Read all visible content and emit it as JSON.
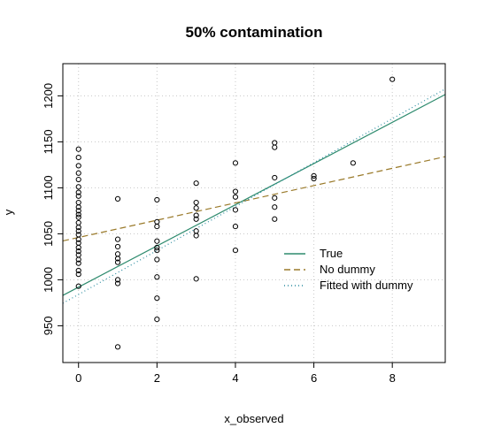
{
  "chart_data": {
    "type": "scatter",
    "title": "50% contamination",
    "xlabel": "x_observed",
    "ylabel": "y",
    "xlim": [
      -0.4,
      9.35
    ],
    "ylim": [
      910,
      1235
    ],
    "xticks": [
      0,
      2,
      4,
      6,
      8
    ],
    "yticks": [
      950,
      1000,
      1050,
      1100,
      1150,
      1200
    ],
    "grid": true,
    "legend_position": "right-center",
    "points": [
      {
        "x": 0,
        "y": 1142
      },
      {
        "x": 0,
        "y": 1133
      },
      {
        "x": 0,
        "y": 1124
      },
      {
        "x": 0,
        "y": 1116
      },
      {
        "x": 0,
        "y": 1109
      },
      {
        "x": 0,
        "y": 1101
      },
      {
        "x": 0,
        "y": 1095
      },
      {
        "x": 0,
        "y": 1091
      },
      {
        "x": 0,
        "y": 1084
      },
      {
        "x": 0,
        "y": 1079
      },
      {
        "x": 0,
        "y": 1075
      },
      {
        "x": 0,
        "y": 1071
      },
      {
        "x": 0,
        "y": 1068
      },
      {
        "x": 0,
        "y": 1062
      },
      {
        "x": 0,
        "y": 1057
      },
      {
        "x": 0,
        "y": 1053
      },
      {
        "x": 0,
        "y": 1049
      },
      {
        "x": 0,
        "y": 1044
      },
      {
        "x": 0,
        "y": 1040
      },
      {
        "x": 0,
        "y": 1035
      },
      {
        "x": 0,
        "y": 1031
      },
      {
        "x": 0,
        "y": 1027
      },
      {
        "x": 0,
        "y": 1022
      },
      {
        "x": 0,
        "y": 1018
      },
      {
        "x": 0,
        "y": 1010
      },
      {
        "x": 0,
        "y": 1006
      },
      {
        "x": 0,
        "y": 993
      },
      {
        "x": 1,
        "y": 1088
      },
      {
        "x": 1,
        "y": 1044
      },
      {
        "x": 1,
        "y": 1036
      },
      {
        "x": 1,
        "y": 1028
      },
      {
        "x": 1,
        "y": 1023
      },
      {
        "x": 1,
        "y": 1019
      },
      {
        "x": 1,
        "y": 1000
      },
      {
        "x": 1,
        "y": 996
      },
      {
        "x": 1,
        "y": 927
      },
      {
        "x": 2,
        "y": 1087
      },
      {
        "x": 2,
        "y": 1063
      },
      {
        "x": 2,
        "y": 1058
      },
      {
        "x": 2,
        "y": 1042
      },
      {
        "x": 2,
        "y": 1035
      },
      {
        "x": 2,
        "y": 1032
      },
      {
        "x": 2,
        "y": 1022
      },
      {
        "x": 2,
        "y": 1003
      },
      {
        "x": 2,
        "y": 980
      },
      {
        "x": 2,
        "y": 957
      },
      {
        "x": 3,
        "y": 1105
      },
      {
        "x": 3,
        "y": 1084
      },
      {
        "x": 3,
        "y": 1078
      },
      {
        "x": 3,
        "y": 1070
      },
      {
        "x": 3,
        "y": 1066
      },
      {
        "x": 3,
        "y": 1053
      },
      {
        "x": 3,
        "y": 1048
      },
      {
        "x": 3,
        "y": 1001
      },
      {
        "x": 4,
        "y": 1127
      },
      {
        "x": 4,
        "y": 1096
      },
      {
        "x": 4,
        "y": 1090
      },
      {
        "x": 4,
        "y": 1076
      },
      {
        "x": 4,
        "y": 1058
      },
      {
        "x": 4,
        "y": 1032
      },
      {
        "x": 5,
        "y": 1149
      },
      {
        "x": 5,
        "y": 1144
      },
      {
        "x": 5,
        "y": 1111
      },
      {
        "x": 5,
        "y": 1089
      },
      {
        "x": 5,
        "y": 1079
      },
      {
        "x": 5,
        "y": 1066
      },
      {
        "x": 6,
        "y": 1113
      },
      {
        "x": 6,
        "y": 1110
      },
      {
        "x": 7,
        "y": 1127
      },
      {
        "x": 8,
        "y": 1218
      }
    ],
    "lines": [
      {
        "name": "True",
        "intercept": 992,
        "slope": 22.4,
        "color": "#2e8b6e",
        "style": "solid"
      },
      {
        "name": "No dummy",
        "intercept": 1046,
        "slope": 9.4,
        "color": "#9a7a2a",
        "style": "dashed"
      },
      {
        "name": "Fitted with dummy",
        "intercept": 984,
        "slope": 23.9,
        "color": "#2a8ca0",
        "style": "dotted"
      }
    ]
  }
}
